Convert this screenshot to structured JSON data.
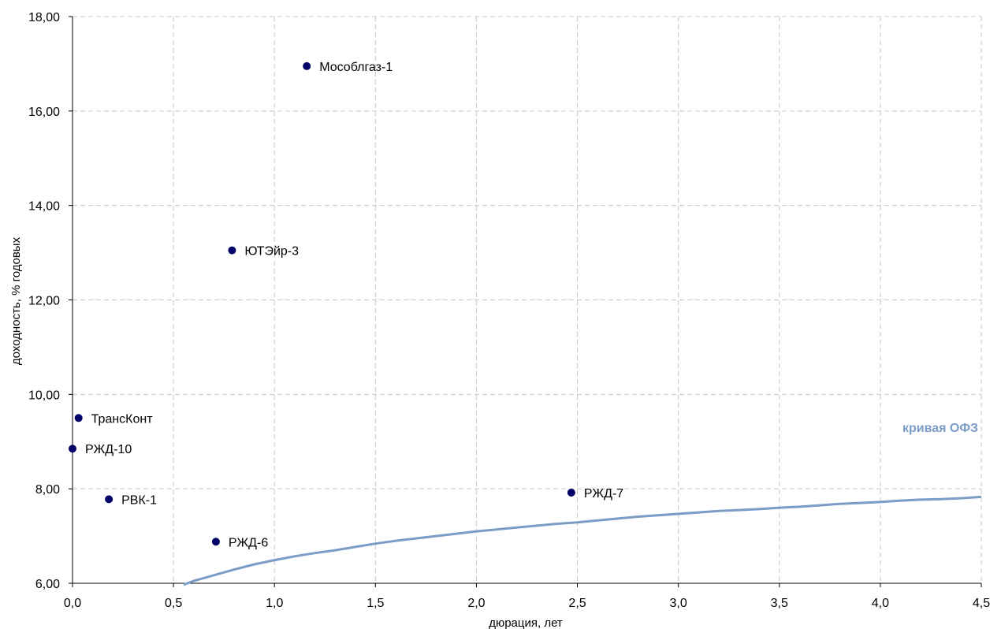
{
  "chart_data": {
    "type": "scatter",
    "xlabel": "дюрация, лет",
    "ylabel": "доходность, % годовых",
    "xlim": [
      0,
      4.5
    ],
    "ylim": [
      6,
      18
    ],
    "x_ticks": [
      0,
      0.5,
      1.0,
      1.5,
      2.0,
      2.5,
      3.0,
      3.5,
      4.0,
      4.5
    ],
    "x_tick_labels": [
      "0,0",
      "0,5",
      "1,0",
      "1,5",
      "2,0",
      "2,5",
      "3,0",
      "3,5",
      "4,0",
      "4,5"
    ],
    "y_ticks": [
      6,
      8,
      10,
      12,
      14,
      16,
      18
    ],
    "y_tick_labels": [
      "6,00",
      "8,00",
      "10,00",
      "12,00",
      "14,00",
      "16,00",
      "18,00"
    ],
    "grid": true,
    "points": [
      {
        "label": "Мособлгаз-1",
        "x": 1.16,
        "y": 16.95
      },
      {
        "label": "ЮТЭйр-3",
        "x": 0.79,
        "y": 13.05
      },
      {
        "label": "ТрансКонт",
        "x": 0.03,
        "y": 9.5
      },
      {
        "label": "РЖД-10",
        "x": 0.0,
        "y": 8.85
      },
      {
        "label": "РВК-1",
        "x": 0.18,
        "y": 7.78
      },
      {
        "label": "РЖД-6",
        "x": 0.71,
        "y": 6.88
      },
      {
        "label": "РЖД-7",
        "x": 2.47,
        "y": 7.92
      }
    ],
    "series": [
      {
        "name": "кривая ОФЗ",
        "type": "line",
        "x": [
          0.55,
          0.6,
          0.7,
          0.8,
          0.9,
          1.0,
          1.1,
          1.2,
          1.3,
          1.4,
          1.5,
          1.6,
          1.7,
          1.8,
          1.9,
          2.0,
          2.1,
          2.2,
          2.3,
          2.4,
          2.5,
          2.6,
          2.7,
          2.8,
          2.9,
          3.0,
          3.1,
          3.2,
          3.3,
          3.4,
          3.5,
          3.6,
          3.7,
          3.8,
          3.9,
          4.0,
          4.1,
          4.2,
          4.3,
          4.4,
          4.5
        ],
        "y": [
          5.97,
          6.05,
          6.17,
          6.29,
          6.4,
          6.49,
          6.57,
          6.64,
          6.7,
          6.77,
          6.84,
          6.9,
          6.95,
          7.0,
          7.05,
          7.1,
          7.14,
          7.18,
          7.22,
          7.26,
          7.29,
          7.33,
          7.37,
          7.41,
          7.44,
          7.47,
          7.5,
          7.53,
          7.55,
          7.57,
          7.6,
          7.62,
          7.65,
          7.68,
          7.7,
          7.72,
          7.75,
          7.77,
          7.78,
          7.8,
          7.83
        ]
      }
    ],
    "colors": {
      "points": "#000066",
      "curve": "#7a9cc6",
      "curve_label": "#7a9cc6",
      "grid": "#c8c8c8"
    }
  }
}
